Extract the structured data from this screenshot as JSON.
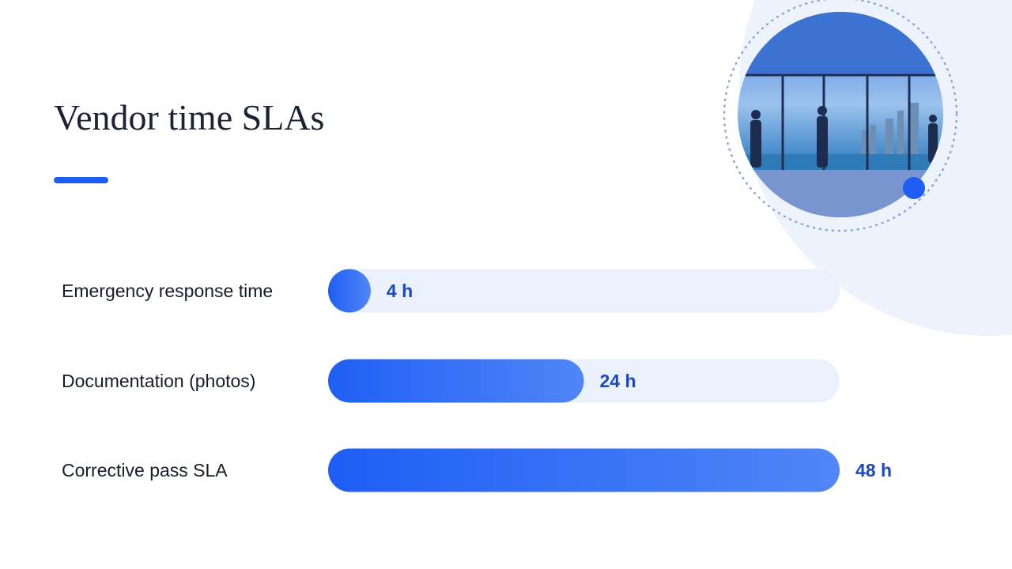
{
  "chart_data": {
    "type": "bar",
    "orientation": "horizontal",
    "title": "Vendor time SLAs",
    "categories": [
      "Emergency response time",
      "Documentation (photos)",
      "Corrective pass SLA"
    ],
    "values": [
      4,
      24,
      48
    ],
    "value_labels": [
      "4 h",
      "24 h",
      "48 h"
    ],
    "xlim": [
      0,
      48
    ],
    "color": "#1f5ef5"
  }
}
